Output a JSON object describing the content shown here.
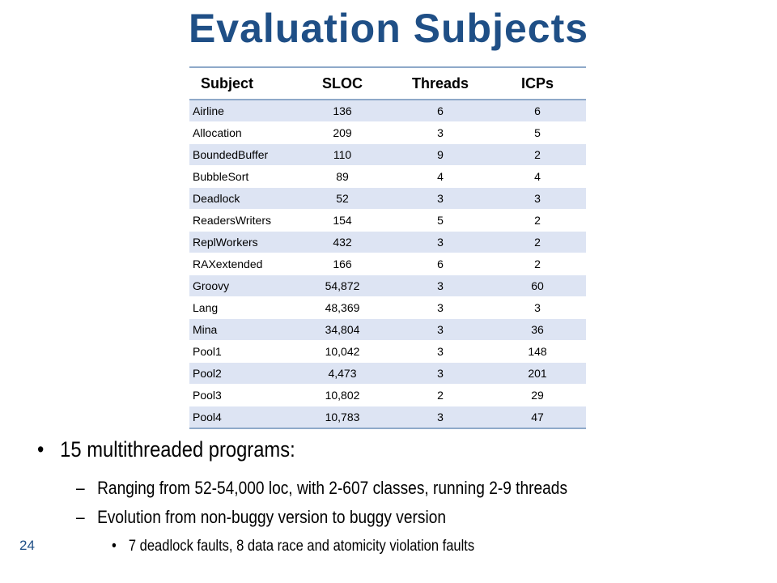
{
  "slide": {
    "title": "Evaluation Subjects",
    "page_number": "24"
  },
  "table": {
    "headers": [
      "Subject",
      "SLOC",
      "Threads",
      "ICPs"
    ],
    "rows": [
      [
        "Airline",
        "136",
        "6",
        "6"
      ],
      [
        "Allocation",
        "209",
        "3",
        "5"
      ],
      [
        "BoundedBuffer",
        "110",
        "9",
        "2"
      ],
      [
        "BubbleSort",
        "89",
        "4",
        "4"
      ],
      [
        "Deadlock",
        "52",
        "3",
        "3"
      ],
      [
        "ReadersWriters",
        "154",
        "5",
        "2"
      ],
      [
        "ReplWorkers",
        "432",
        "3",
        "2"
      ],
      [
        "RAXextended",
        "166",
        "6",
        "2"
      ],
      [
        "Groovy",
        "54,872",
        "3",
        "60"
      ],
      [
        "Lang",
        "48,369",
        "3",
        "3"
      ],
      [
        "Mina",
        "34,804",
        "3",
        "36"
      ],
      [
        "Pool1",
        "10,042",
        "3",
        "148"
      ],
      [
        "Pool2",
        "4,473",
        "3",
        "201"
      ],
      [
        "Pool3",
        "10,802",
        "2",
        "29"
      ],
      [
        "Pool4",
        "10,783",
        "3",
        "47"
      ]
    ]
  },
  "bullets": {
    "main": "15 multithreaded programs:",
    "sub1": "Ranging from 52-54,000 loc, with 2-607 classes, running 2-9 threads",
    "sub2": "Evolution from non-buggy version to buggy version",
    "subsub1": "7 deadlock faults, 8 data race and atomicity violation faults",
    "bullet_char": "•",
    "dash_char": "–"
  },
  "colors": {
    "title": "#1f4f86",
    "row_band": "#dde4f3",
    "rule": "#8fa9c9"
  }
}
